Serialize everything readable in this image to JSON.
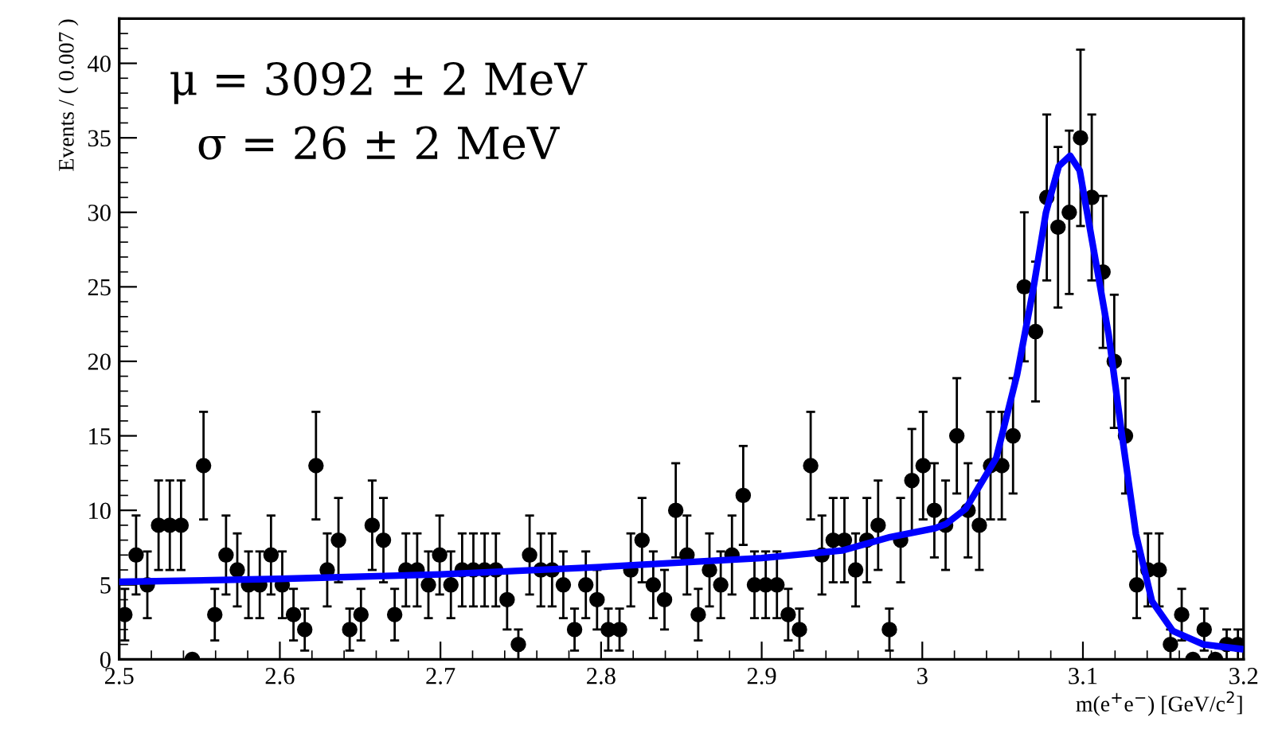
{
  "chart_data": {
    "type": "scatter",
    "xlabel": "m(e$^{+}$e$^{−}$) [GeV/c$^{2}$]",
    "ylabel": "Events / ( 0.007 )",
    "annotations": [
      "μ = 3092 ± 2 MeV",
      "σ = 26 ± 2 MeV"
    ],
    "xlim": [
      2.5,
      3.2
    ],
    "ylim": [
      0,
      43
    ],
    "xticks": [
      2.5,
      2.6,
      2.7,
      2.8,
      2.9,
      3,
      3.1,
      3.2
    ],
    "yticks": [
      0,
      5,
      10,
      15,
      20,
      25,
      30,
      35,
      40
    ],
    "grid": false,
    "legend": false,
    "series": [
      {
        "type": "scatter",
        "color": "#000000",
        "marker": "circle",
        "x": [
          2.5035,
          2.5105,
          2.5175,
          2.5245,
          2.5315,
          2.5385,
          2.5455,
          2.5525,
          2.5595,
          2.5665,
          2.5735,
          2.5805,
          2.5875,
          2.5945,
          2.6015,
          2.6085,
          2.6155,
          2.6225,
          2.6295,
          2.6365,
          2.6435,
          2.6505,
          2.6575,
          2.6645,
          2.6715,
          2.6785,
          2.6855,
          2.6925,
          2.6995,
          2.7065,
          2.7135,
          2.7205,
          2.7275,
          2.7345,
          2.7415,
          2.7485,
          2.7555,
          2.7625,
          2.7695,
          2.7765,
          2.7835,
          2.7905,
          2.7975,
          2.8045,
          2.8115,
          2.8185,
          2.8255,
          2.8325,
          2.8395,
          2.8465,
          2.8535,
          2.8605,
          2.8675,
          2.8745,
          2.8815,
          2.8885,
          2.8955,
          2.9025,
          2.9095,
          2.9165,
          2.9235,
          2.9305,
          2.9375,
          2.9445,
          2.9515,
          2.9585,
          2.9655,
          2.9725,
          2.9795,
          2.9865,
          2.9935,
          3.0005,
          3.0075,
          3.0145,
          3.0215,
          3.0285,
          3.0355,
          3.0425,
          3.0495,
          3.0565,
          3.0635,
          3.0705,
          3.0775,
          3.0845,
          3.0915,
          3.0985,
          3.1055,
          3.1125,
          3.1195,
          3.1265,
          3.1335,
          3.1405,
          3.1475,
          3.1545,
          3.1615,
          3.1685,
          3.1755,
          3.1825,
          3.1895,
          3.1965
        ],
        "values": [
          3,
          7,
          5,
          9,
          9,
          9,
          0,
          13,
          3,
          7,
          6,
          5,
          5,
          7,
          5,
          3,
          2,
          13,
          6,
          8,
          2,
          3,
          9,
          8,
          3,
          6,
          6,
          5,
          7,
          5,
          6,
          6,
          6,
          6,
          4,
          1,
          7,
          6,
          6,
          5,
          2,
          5,
          4,
          2,
          2,
          6,
          8,
          5,
          4,
          10,
          7,
          3,
          6,
          5,
          7,
          11,
          5,
          5,
          5,
          3,
          2,
          13,
          7,
          8,
          8,
          6,
          8,
          9,
          2,
          8,
          12,
          13,
          10,
          9,
          15,
          10,
          9,
          13,
          13,
          15,
          25,
          22,
          31,
          29,
          30,
          35,
          31,
          26,
          20,
          15,
          5,
          6,
          6,
          1,
          3,
          0,
          2,
          0,
          1,
          1
        ],
        "errors": [
          1.73,
          2.65,
          2.24,
          3,
          3,
          3,
          null,
          3.61,
          1.73,
          2.65,
          2.45,
          2.24,
          2.24,
          2.65,
          2.24,
          1.73,
          1.41,
          3.61,
          2.45,
          2.83,
          1.41,
          1.73,
          3,
          2.83,
          1.73,
          2.45,
          2.45,
          2.24,
          2.65,
          2.24,
          2.45,
          2.45,
          2.45,
          2.45,
          2,
          1,
          2.65,
          2.45,
          2.45,
          2.24,
          1.41,
          2.24,
          2,
          1.41,
          1.41,
          2.45,
          2.83,
          2.24,
          2,
          3.16,
          2.65,
          1.73,
          2.45,
          2.24,
          2.65,
          3.32,
          2.24,
          2.24,
          2.24,
          1.73,
          1.41,
          3.61,
          2.65,
          2.83,
          2.83,
          2.45,
          2.83,
          3,
          1.41,
          2.83,
          3.46,
          3.61,
          3.16,
          3,
          3.87,
          3.16,
          3,
          3.61,
          3.61,
          3.87,
          5,
          4.69,
          5.57,
          5.39,
          5.48,
          5.92,
          5.57,
          5.1,
          4.47,
          3.87,
          2.24,
          2.45,
          2.45,
          1,
          1.73,
          null,
          1.41,
          null,
          1,
          1
        ]
      },
      {
        "type": "line",
        "color": "#0000ff",
        "marker": "none",
        "line_style": "solid",
        "x": [
          2.5,
          2.6,
          2.7,
          2.8,
          2.9,
          2.95,
          2.98,
          3.008,
          3.015,
          3.027,
          3.046,
          3.059,
          3.069,
          3.077,
          3.085,
          3.092,
          3.098,
          3.107,
          3.116,
          3.124,
          3.133,
          3.143,
          3.156,
          3.175,
          3.198
        ],
        "values": [
          5.2,
          5.4,
          5.7,
          6.2,
          6.8,
          7.3,
          8.2,
          8.8,
          9.1,
          10.1,
          13.5,
          19.1,
          24.8,
          30.0,
          33.1,
          33.8,
          32.8,
          27.3,
          21.8,
          15.3,
          8.4,
          3.9,
          1.9,
          1.0,
          0.7
        ]
      }
    ]
  }
}
